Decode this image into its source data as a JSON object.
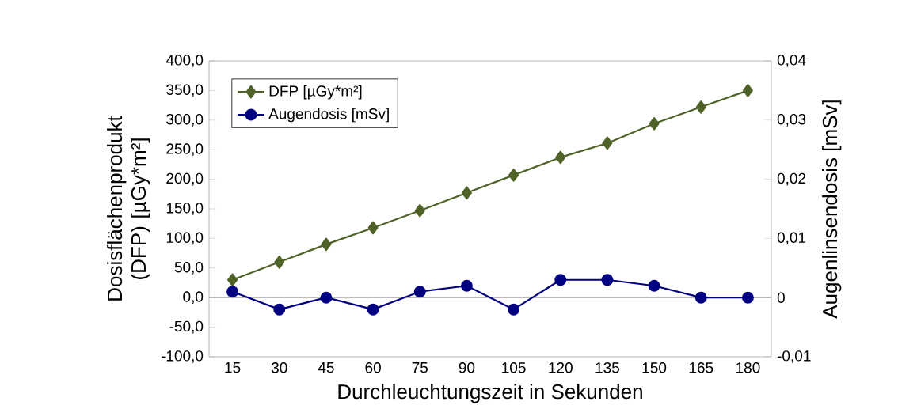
{
  "chart_data": {
    "type": "line",
    "xlabel": "Durchleuchtungszeit in Sekunden",
    "ylabel": "Dosisflächenprodukt  (DFP) [µGy*m²]",
    "y2label": "Augenlinsendosis [mSv]",
    "categories": [
      "15",
      "30",
      "45",
      "60",
      "75",
      "90",
      "105",
      "120",
      "135",
      "150",
      "165",
      "180"
    ],
    "series": [
      {
        "name": "DFP [µGy*m²]",
        "color": "#4f6228",
        "marker": "diamond",
        "values": [
          30,
          60,
          90,
          118,
          147,
          177,
          207,
          237,
          261,
          294,
          322,
          350
        ]
      },
      {
        "name": "Augendosis [mSv]",
        "color": "#000080",
        "marker": "circle",
        "axis": "y2",
        "values": [
          0.001,
          -0.002,
          0,
          -0.002,
          0.001,
          0.002,
          -0.002,
          0.003,
          0.003,
          0.002,
          0,
          0
        ]
      }
    ],
    "ylim": [
      -100,
      400
    ],
    "yticks": [
      {
        "value": -100,
        "label": "-100,0"
      },
      {
        "value": -50,
        "label": "-50,0"
      },
      {
        "value": 0,
        "label": "0,0"
      },
      {
        "value": 50,
        "label": "50,0"
      },
      {
        "value": 100,
        "label": "100,0"
      },
      {
        "value": 150,
        "label": "150,0"
      },
      {
        "value": 200,
        "label": "200,0"
      },
      {
        "value": 250,
        "label": "250,0"
      },
      {
        "value": 300,
        "label": "300,0"
      },
      {
        "value": 350,
        "label": "350,0"
      },
      {
        "value": 400,
        "label": "400,0"
      }
    ],
    "y2lim": [
      -0.01,
      0.04
    ],
    "y2ticks": [
      {
        "value": -0.01,
        "label": "-0,01"
      },
      0,
      {
        "value": 0.01,
        "label": "0,01"
      },
      {
        "value": 0.02,
        "label": "0,02"
      },
      {
        "value": 0.03,
        "label": "0,03"
      },
      {
        "value": 0.04,
        "label": "0,04"
      }
    ],
    "ref_lines": [
      {
        "axis": "y",
        "value": 0,
        "color": "#a6a6a6"
      }
    ],
    "grid": false,
    "legend": "top left",
    "line_style": "solid"
  }
}
